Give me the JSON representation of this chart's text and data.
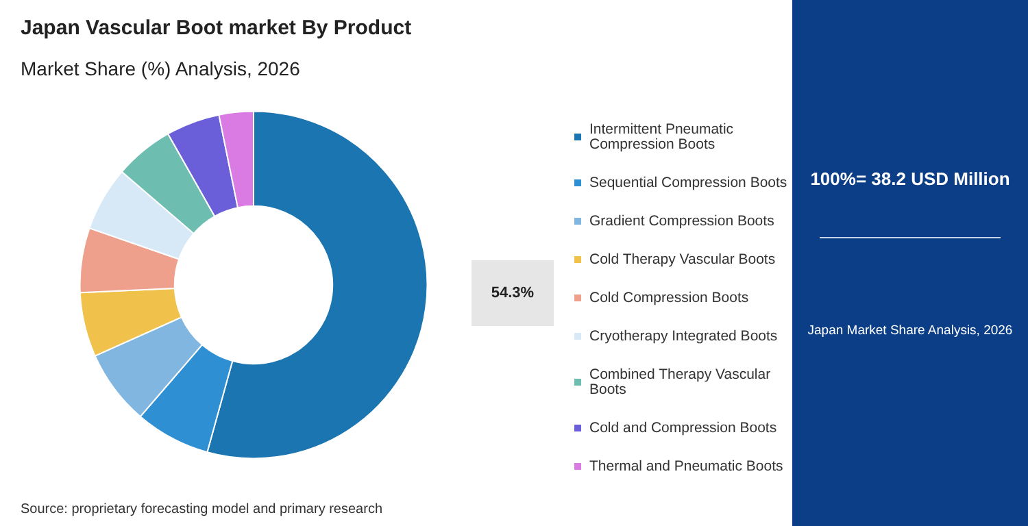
{
  "chart_data": {
    "type": "donut",
    "title": "Japan Vascular Boot market By Product",
    "subtitle": "Market Share (%) Analysis, 2026",
    "categories": [
      "Intermittent Pneumatic Compression Boots",
      "Sequential Compression Boots",
      "Gradient Compression Boots",
      "Cold Therapy Vascular Boots",
      "Cold Compression Boots",
      "Cryotherapy Integrated Boots",
      "Combined Therapy Vascular Boots",
      "Cold and Compression Boots",
      "Thermal and Pneumatic Boots"
    ],
    "values": [
      54.3,
      7,
      7,
      6,
      6,
      6,
      5.5,
      5,
      3.2
    ],
    "colors": [
      "#1b75b0",
      "#2e8fd3",
      "#80b6df",
      "#f0c24c",
      "#eea08c",
      "#d7e9f7",
      "#6dbdb1",
      "#6a5fd8",
      "#d97be2"
    ],
    "value_labels": [
      "54.3%",
      null,
      null,
      null,
      null,
      null,
      null,
      null,
      null
    ],
    "legend": "right",
    "annotations": [
      "Source: proprietary forecasting model and primary research",
      "100%= 38.2 USD Million",
      "Japan Market Share Analysis, 2026"
    ]
  }
}
